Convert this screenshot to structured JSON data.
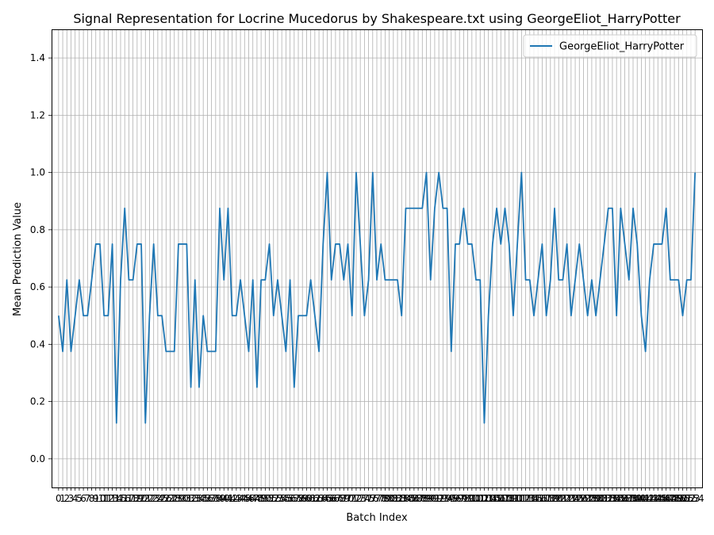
{
  "chart_data": {
    "type": "line",
    "title": "Signal Representation for Locrine Mucedorus by Shakespeare.txt using GeorgeEliot_HarryPotter",
    "xlabel": "Batch Index",
    "ylabel": "Mean Prediction Value",
    "xlim": [
      -1.7,
      155.7
    ],
    "ylim": [
      -0.1,
      1.5
    ],
    "yticks": [
      0.0,
      0.2,
      0.4,
      0.6,
      0.8,
      1.0,
      1.2,
      1.4
    ],
    "grid": true,
    "legend_position": "top-right",
    "colors": {
      "series": "#1f77b4",
      "grid": "#b0b0b0"
    },
    "series": [
      {
        "name": "GeorgeEliot_HarryPotter",
        "values": [
          0.5,
          0.375,
          0.625,
          0.375,
          0.5,
          0.625,
          0.5,
          0.5,
          0.625,
          0.75,
          0.75,
          0.5,
          0.5,
          0.75,
          0.125,
          0.625,
          0.875,
          0.625,
          0.625,
          0.75,
          0.75,
          0.125,
          0.5,
          0.75,
          0.5,
          0.5,
          0.375,
          0.375,
          0.375,
          0.75,
          0.75,
          0.75,
          0.25,
          0.625,
          0.25,
          0.5,
          0.375,
          0.375,
          0.375,
          0.875,
          0.625,
          0.875,
          0.5,
          0.5,
          0.625,
          0.5,
          0.375,
          0.625,
          0.25,
          0.625,
          0.625,
          0.75,
          0.5,
          0.625,
          0.5,
          0.375,
          0.625,
          0.25,
          0.5,
          0.5,
          0.5,
          0.625,
          0.5,
          0.375,
          0.75,
          1.0,
          0.625,
          0.75,
          0.75,
          0.625,
          0.75,
          0.5,
          1.0,
          0.75,
          0.5,
          0.625,
          1.0,
          0.625,
          0.75,
          0.625,
          0.625,
          0.625,
          0.625,
          0.5,
          0.875,
          0.875,
          0.875,
          0.875,
          0.875,
          1.0,
          0.625,
          0.875,
          1.0,
          0.875,
          0.875,
          0.375,
          0.75,
          0.75,
          0.875,
          0.75,
          0.75,
          0.625,
          0.625,
          0.125,
          0.5,
          0.75,
          0.875,
          0.75,
          0.875,
          0.75,
          0.5,
          0.75,
          1.0,
          0.625,
          0.625,
          0.5,
          0.625,
          0.75,
          0.5,
          0.625,
          0.875,
          0.625,
          0.625,
          0.75,
          0.5,
          0.625,
          0.75,
          0.625,
          0.5,
          0.625,
          0.5,
          0.625,
          0.75,
          0.875,
          0.875,
          0.5,
          0.875,
          0.75,
          0.625,
          0.875,
          0.75,
          0.5,
          0.375,
          0.625,
          0.75,
          0.75,
          0.75,
          0.875,
          0.625,
          0.625,
          0.625,
          0.5,
          0.625,
          0.625,
          1.0
        ]
      }
    ]
  }
}
